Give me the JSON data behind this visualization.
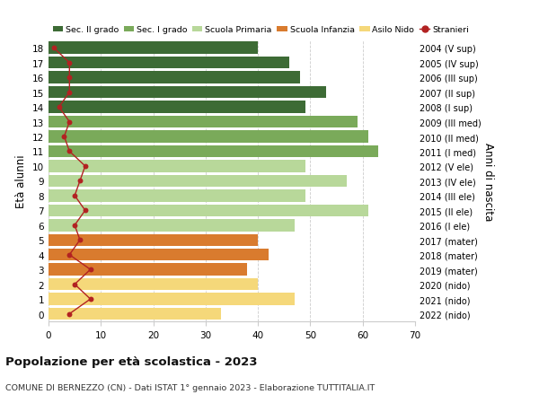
{
  "ages": [
    18,
    17,
    16,
    15,
    14,
    13,
    12,
    11,
    10,
    9,
    8,
    7,
    6,
    5,
    4,
    3,
    2,
    1,
    0
  ],
  "right_labels": [
    "2004 (V sup)",
    "2005 (IV sup)",
    "2006 (III sup)",
    "2007 (II sup)",
    "2008 (I sup)",
    "2009 (III med)",
    "2010 (II med)",
    "2011 (I med)",
    "2012 (V ele)",
    "2013 (IV ele)",
    "2014 (III ele)",
    "2015 (II ele)",
    "2016 (I ele)",
    "2017 (mater)",
    "2018 (mater)",
    "2019 (mater)",
    "2020 (nido)",
    "2021 (nido)",
    "2022 (nido)"
  ],
  "bar_values": [
    40,
    46,
    48,
    53,
    49,
    59,
    61,
    63,
    49,
    57,
    49,
    61,
    47,
    40,
    42,
    38,
    40,
    47,
    33
  ],
  "bar_colors": [
    "#3d6b35",
    "#3d6b35",
    "#3d6b35",
    "#3d6b35",
    "#3d6b35",
    "#7aaa5a",
    "#7aaa5a",
    "#7aaa5a",
    "#b8d89a",
    "#b8d89a",
    "#b8d89a",
    "#b8d89a",
    "#b8d89a",
    "#d97b2e",
    "#d97b2e",
    "#d97b2e",
    "#f5d87a",
    "#f5d87a",
    "#f5d87a"
  ],
  "stranieri_values": [
    1,
    4,
    4,
    4,
    2,
    4,
    3,
    4,
    7,
    6,
    5,
    7,
    5,
    6,
    4,
    8,
    5,
    8,
    4
  ],
  "stranieri_color": "#b22222",
  "ylabel": "Età alunni",
  "right_ylabel": "Anni di nascita",
  "title": "Popolazione per età scolastica - 2023",
  "subtitle": "COMUNE DI BERNEZZO (CN) - Dati ISTAT 1° gennaio 2023 - Elaborazione TUTTITALIA.IT",
  "xlim": [
    0,
    70
  ],
  "ylim": [
    -0.5,
    18.5
  ],
  "legend_items": [
    {
      "label": "Sec. II grado",
      "color": "#3d6b35",
      "type": "patch"
    },
    {
      "label": "Sec. I grado",
      "color": "#7aaa5a",
      "type": "patch"
    },
    {
      "label": "Scuola Primaria",
      "color": "#b8d89a",
      "type": "patch"
    },
    {
      "label": "Scuola Infanzia",
      "color": "#d97b2e",
      "type": "patch"
    },
    {
      "label": "Asilo Nido",
      "color": "#f5d87a",
      "type": "patch"
    },
    {
      "label": "Stranieri",
      "color": "#b22222",
      "type": "marker"
    }
  ],
  "background_color": "#ffffff",
  "grid_color": "#cccccc",
  "xticks": [
    0,
    10,
    20,
    30,
    40,
    50,
    60,
    70
  ],
  "bar_height": 0.82
}
